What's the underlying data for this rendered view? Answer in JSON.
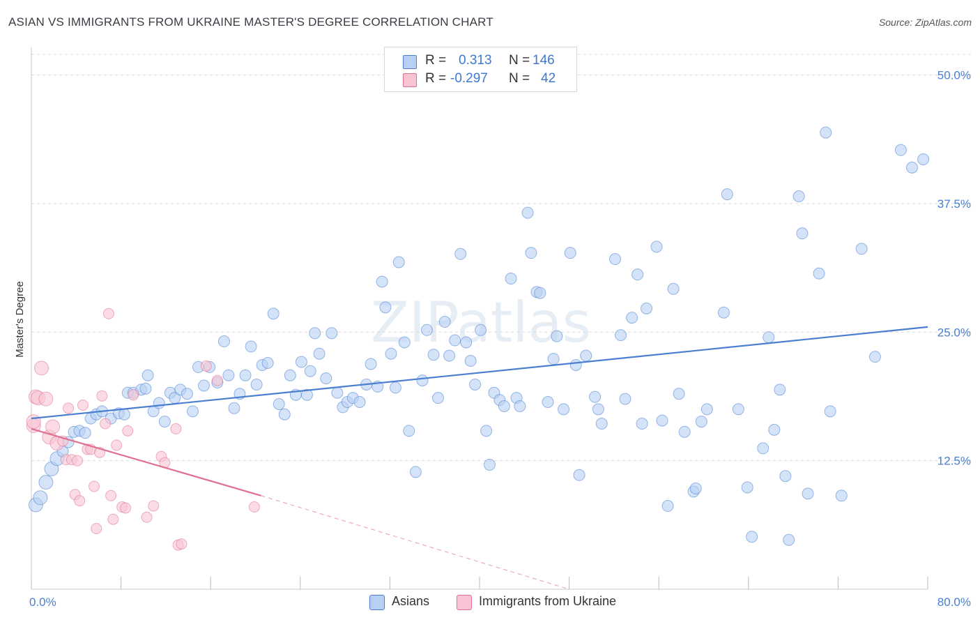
{
  "title": "ASIAN VS IMMIGRANTS FROM UKRAINE MASTER'S DEGREE CORRELATION CHART",
  "source": "Source: ZipAtlas.com",
  "watermark": "ZIPatlas",
  "legend": {
    "r_label": "R =",
    "n_label": "N =",
    "rows": [
      {
        "r": "0.313",
        "n": "146",
        "color": "#4a7fd0",
        "fill": "#b7d0f3"
      },
      {
        "r": "-0.297",
        "n": "42",
        "color": "#e0708f",
        "fill": "#f8c4d3"
      }
    ]
  },
  "chart_data": {
    "type": "scatter",
    "title": "ASIAN VS IMMIGRANTS FROM UKRAINE MASTER'S DEGREE CORRELATION CHART",
    "xlabel": "",
    "ylabel": "Master's Degree",
    "xlim": [
      0,
      80
    ],
    "ylim": [
      0,
      52
    ],
    "x_tick_labels": [
      "0.0%",
      "80.0%"
    ],
    "y_ticks": [
      12.5,
      25.0,
      37.5,
      50.0
    ],
    "y_tick_labels": [
      "12.5%",
      "25.0%",
      "37.5%",
      "50.0%"
    ],
    "x_minor_ticks": [
      0,
      8,
      16,
      24,
      32,
      40,
      48,
      56,
      64,
      72,
      80
    ],
    "grid": true,
    "legend_position": "top-center",
    "series": [
      {
        "name": "Asians",
        "color": "#4a7fd0",
        "fill": "#b7d0f3",
        "trend": {
          "x": [
            0,
            80
          ],
          "y": [
            16.6,
            25.5
          ]
        },
        "points": [
          [
            0.4,
            8.2
          ],
          [
            0.8,
            8.9
          ],
          [
            1.3,
            10.4
          ],
          [
            1.8,
            11.7
          ],
          [
            2.3,
            12.7
          ],
          [
            2.8,
            13.4
          ],
          [
            3.3,
            14.3
          ],
          [
            3.8,
            15.3
          ],
          [
            4.3,
            15.4
          ],
          [
            4.8,
            15.2
          ],
          [
            5.3,
            16.6
          ],
          [
            5.8,
            17.0
          ],
          [
            6.3,
            17.3
          ],
          [
            7.1,
            16.6
          ],
          [
            7.8,
            17.1
          ],
          [
            8.3,
            17.0
          ],
          [
            8.6,
            19.1
          ],
          [
            9.1,
            19.1
          ],
          [
            9.8,
            19.4
          ],
          [
            10.2,
            19.5
          ],
          [
            10.4,
            20.8
          ],
          [
            10.9,
            17.3
          ],
          [
            11.4,
            18.1
          ],
          [
            11.9,
            16.3
          ],
          [
            12.4,
            19.1
          ],
          [
            12.8,
            18.6
          ],
          [
            13.3,
            19.4
          ],
          [
            13.9,
            19.0
          ],
          [
            14.4,
            17.3
          ],
          [
            14.9,
            21.6
          ],
          [
            15.4,
            19.8
          ],
          [
            15.9,
            21.6
          ],
          [
            16.6,
            20.1
          ],
          [
            17.2,
            24.1
          ],
          [
            17.6,
            20.8
          ],
          [
            18.1,
            17.6
          ],
          [
            18.6,
            19.0
          ],
          [
            19.1,
            20.8
          ],
          [
            19.6,
            23.6
          ],
          [
            20.1,
            19.9
          ],
          [
            20.6,
            21.8
          ],
          [
            21.1,
            22.0
          ],
          [
            21.6,
            26.8
          ],
          [
            22.1,
            18.0
          ],
          [
            22.6,
            17.0
          ],
          [
            23.1,
            20.8
          ],
          [
            23.6,
            18.9
          ],
          [
            24.1,
            22.1
          ],
          [
            24.6,
            18.9
          ],
          [
            24.9,
            21.2
          ],
          [
            25.3,
            24.9
          ],
          [
            25.7,
            22.9
          ],
          [
            26.3,
            20.5
          ],
          [
            26.8,
            24.9
          ],
          [
            27.3,
            19.1
          ],
          [
            27.8,
            17.7
          ],
          [
            28.2,
            18.2
          ],
          [
            28.7,
            18.6
          ],
          [
            29.3,
            18.2
          ],
          [
            29.9,
            19.9
          ],
          [
            30.3,
            21.9
          ],
          [
            30.9,
            19.7
          ],
          [
            31.3,
            29.9
          ],
          [
            31.6,
            27.4
          ],
          [
            32.1,
            22.9
          ],
          [
            32.5,
            19.6
          ],
          [
            32.8,
            31.8
          ],
          [
            33.3,
            24.0
          ],
          [
            33.7,
            15.4
          ],
          [
            34.3,
            11.4
          ],
          [
            34.9,
            20.3
          ],
          [
            35.3,
            25.2
          ],
          [
            35.9,
            22.8
          ],
          [
            36.3,
            18.6
          ],
          [
            36.9,
            26.0
          ],
          [
            37.3,
            22.7
          ],
          [
            37.8,
            24.2
          ],
          [
            38.3,
            32.6
          ],
          [
            38.8,
            24.0
          ],
          [
            39.2,
            22.2
          ],
          [
            39.6,
            19.9
          ],
          [
            40.1,
            25.2
          ],
          [
            40.6,
            15.4
          ],
          [
            40.9,
            12.1
          ],
          [
            41.3,
            19.1
          ],
          [
            41.8,
            18.4
          ],
          [
            42.2,
            17.8
          ],
          [
            42.8,
            30.2
          ],
          [
            43.3,
            18.6
          ],
          [
            43.6,
            17.8
          ],
          [
            44.3,
            36.6
          ],
          [
            44.6,
            32.7
          ],
          [
            45.1,
            28.9
          ],
          [
            45.4,
            28.8
          ],
          [
            46.1,
            18.2
          ],
          [
            46.6,
            22.4
          ],
          [
            46.9,
            24.6
          ],
          [
            47.5,
            17.5
          ],
          [
            48.1,
            32.7
          ],
          [
            48.6,
            21.8
          ],
          [
            48.9,
            11.1
          ],
          [
            49.5,
            22.7
          ],
          [
            50.3,
            18.7
          ],
          [
            50.6,
            17.5
          ],
          [
            50.9,
            16.1
          ],
          [
            52.1,
            32.1
          ],
          [
            52.6,
            24.7
          ],
          [
            53.0,
            18.5
          ],
          [
            53.6,
            26.4
          ],
          [
            54.1,
            30.6
          ],
          [
            54.5,
            16.1
          ],
          [
            54.9,
            27.3
          ],
          [
            55.8,
            33.3
          ],
          [
            56.3,
            16.4
          ],
          [
            56.8,
            8.1
          ],
          [
            57.3,
            29.2
          ],
          [
            57.8,
            19.0
          ],
          [
            58.3,
            15.3
          ],
          [
            59.1,
            9.5
          ],
          [
            59.3,
            9.8
          ],
          [
            59.8,
            16.3
          ],
          [
            60.3,
            17.5
          ],
          [
            61.8,
            26.9
          ],
          [
            62.1,
            38.4
          ],
          [
            63.1,
            17.5
          ],
          [
            63.9,
            9.9
          ],
          [
            64.3,
            5.1
          ],
          [
            65.3,
            13.7
          ],
          [
            65.8,
            24.5
          ],
          [
            66.3,
            15.5
          ],
          [
            66.8,
            19.4
          ],
          [
            67.3,
            11.0
          ],
          [
            67.6,
            4.8
          ],
          [
            68.5,
            38.2
          ],
          [
            68.8,
            34.6
          ],
          [
            69.3,
            9.3
          ],
          [
            70.3,
            30.7
          ],
          [
            70.9,
            44.4
          ],
          [
            71.3,
            17.3
          ],
          [
            72.3,
            9.1
          ],
          [
            74.1,
            33.1
          ],
          [
            75.3,
            22.6
          ],
          [
            77.6,
            42.7
          ],
          [
            78.6,
            41.0
          ],
          [
            79.6,
            41.8
          ]
        ]
      },
      {
        "name": "Immigrants from Ukraine",
        "color": "#e0708f",
        "fill": "#f8c4d3",
        "trend": {
          "x": [
            0,
            20.5
          ],
          "y": [
            15.6,
            9.1
          ]
        },
        "trend_dashed": {
          "x": [
            20.5,
            48
          ],
          "y": [
            9.1,
            0
          ]
        },
        "points": [
          [
            0.2,
            15.9
          ],
          [
            0.4,
            18.7
          ],
          [
            0.6,
            18.6
          ],
          [
            0.9,
            21.5
          ],
          [
            1.3,
            18.5
          ],
          [
            1.6,
            14.8
          ],
          [
            1.9,
            15.8
          ],
          [
            2.3,
            14.2
          ],
          [
            2.8,
            14.4
          ],
          [
            3.1,
            12.6
          ],
          [
            3.3,
            17.6
          ],
          [
            3.6,
            12.6
          ],
          [
            3.9,
            9.2
          ],
          [
            4.1,
            12.5
          ],
          [
            4.3,
            8.6
          ],
          [
            4.6,
            17.9
          ],
          [
            5.0,
            13.6
          ],
          [
            5.3,
            13.6
          ],
          [
            5.6,
            10.0
          ],
          [
            5.8,
            5.9
          ],
          [
            6.1,
            13.3
          ],
          [
            6.3,
            18.8
          ],
          [
            6.6,
            16.1
          ],
          [
            6.9,
            26.8
          ],
          [
            7.1,
            9.1
          ],
          [
            7.3,
            6.8
          ],
          [
            7.6,
            14.0
          ],
          [
            8.1,
            8.0
          ],
          [
            8.4,
            7.9
          ],
          [
            8.6,
            15.4
          ],
          [
            9.1,
            18.9
          ],
          [
            10.3,
            7.0
          ],
          [
            10.9,
            8.1
          ],
          [
            11.6,
            12.9
          ],
          [
            11.9,
            12.3
          ],
          [
            12.9,
            15.6
          ],
          [
            13.1,
            4.3
          ],
          [
            13.4,
            4.4
          ],
          [
            15.6,
            21.7
          ],
          [
            16.6,
            20.3
          ],
          [
            19.9,
            8.0
          ],
          [
            0.2,
            16.3
          ]
        ]
      }
    ]
  }
}
